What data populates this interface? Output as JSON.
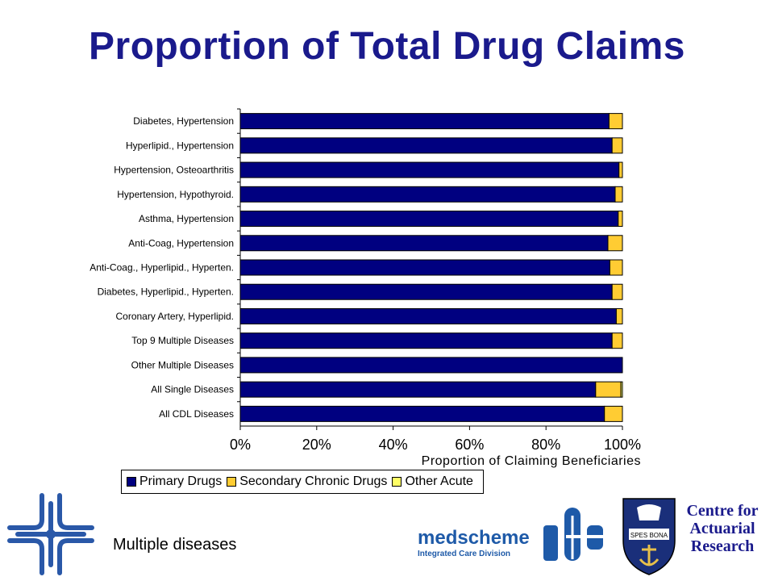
{
  "slide": {
    "title": "Proportion of Total Drug Claims",
    "footer_text": "Multiple diseases",
    "medscheme_name": "medscheme",
    "medscheme_sub": "Integrated Care Division",
    "car_line1": "Centre for",
    "car_line2": "Actuarial",
    "car_line3": "Research",
    "crest_text": "SPES BONA"
  },
  "colors": {
    "primary": "#000080",
    "secondary": "#ffcc33",
    "other": "#ffff66",
    "title": "#1a1a8c",
    "brand": "#1e5aa8"
  },
  "chart_data": {
    "type": "bar",
    "orientation": "horizontal",
    "stacked": true,
    "categories": [
      "Diabetes, Hypertension",
      "Hyperlipid., Hypertension",
      "Hypertension, Osteoarthritis",
      "Hypertension, Hypothyroid.",
      "Asthma, Hypertension",
      "Anti-Coag, Hypertension",
      "Anti-Coag., Hyperlipid., Hyperten.",
      "Diabetes, Hyperlipid., Hyperten.",
      "Coronary Artery, Hyperlipid.",
      "Top 9 Multiple Diseases",
      "Other Multiple Diseases",
      "All Single Diseases",
      "All CDL Diseases"
    ],
    "series": [
      {
        "name": "Primary Drugs",
        "color": "#000080",
        "values": [
          96.5,
          97.3,
          99.1,
          98.1,
          98.9,
          96.2,
          96.7,
          97.3,
          98.4,
          97.3,
          100.0,
          93.0,
          95.3
        ]
      },
      {
        "name": "Secondary Chronic Drugs",
        "color": "#ffcc33",
        "values": [
          3.5,
          2.7,
          0.9,
          1.9,
          1.1,
          3.8,
          3.3,
          2.7,
          1.6,
          2.7,
          0.0,
          6.6,
          4.7
        ]
      },
      {
        "name": "Other Acute",
        "color": "#ffff66",
        "values": [
          0,
          0,
          0,
          0,
          0,
          0,
          0,
          0,
          0,
          0,
          0,
          0.4,
          0
        ]
      }
    ],
    "xlabel": "Proportion of Claiming Beneficiaries",
    "ylabel": "",
    "xlim": [
      0,
      100
    ],
    "x_ticks": [
      "0%",
      "20%",
      "40%",
      "60%",
      "80%",
      "100%"
    ],
    "grid": false,
    "legend_position": "bottom"
  }
}
